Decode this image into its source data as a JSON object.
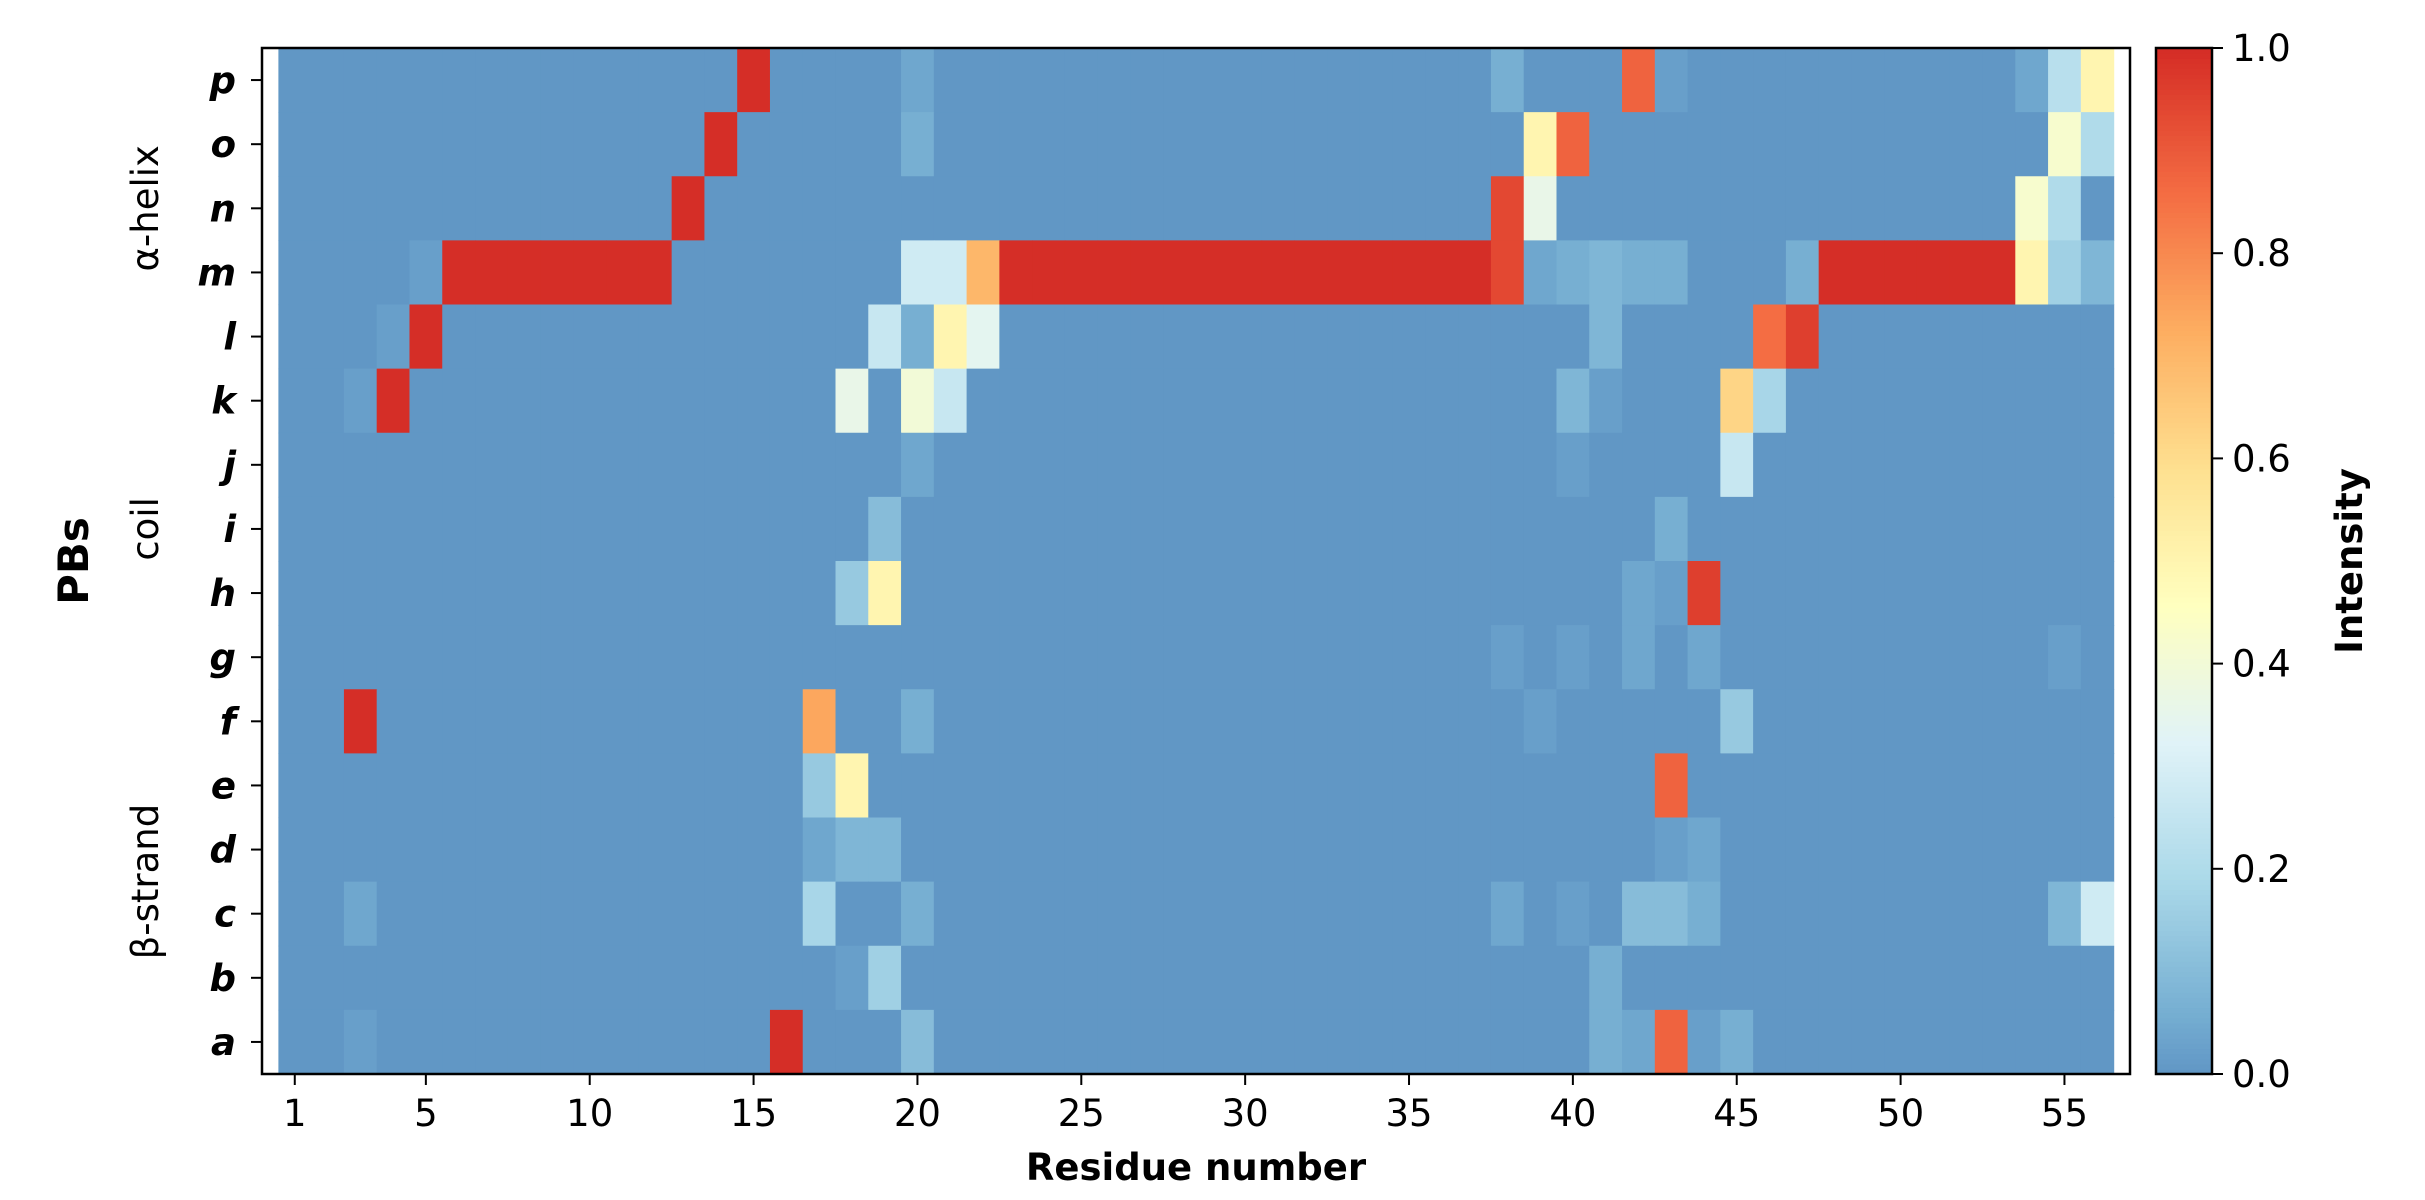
{
  "chart_data": {
    "type": "heatmap",
    "xlabel": "Residue number",
    "ylabel": "PBs",
    "colorbar_label": "Intensity",
    "colormap": "RdYlBu_r",
    "vmin": 0.0,
    "vmax": 1.0,
    "colorbar_ticks": [
      "0.0",
      "0.2",
      "0.4",
      "0.6",
      "0.8",
      "1.0"
    ],
    "x_first_residue": 1,
    "x_last_residue": 56,
    "x_ticks": [
      1,
      5,
      10,
      15,
      20,
      25,
      30,
      35,
      40,
      45,
      50,
      55
    ],
    "rows": [
      "p",
      "o",
      "n",
      "m",
      "l",
      "k",
      "j",
      "i",
      "h",
      "g",
      "f",
      "e",
      "d",
      "c",
      "b",
      "a"
    ],
    "row_groups": [
      {
        "label": "α-helix",
        "from_row": "p",
        "to_row": "l"
      },
      {
        "label": "coil",
        "from_row": "k",
        "to_row": "g"
      },
      {
        "label": "β-strand",
        "from_row": "f",
        "to_row": "a"
      }
    ],
    "cells": {
      "p": {
        "15": 1.0,
        "20": 0.04,
        "38": 0.06,
        "42": 0.88,
        "43": 0.02,
        "54": 0.04,
        "55": 0.22,
        "56": 0.5
      },
      "o": {
        "14": 1.0,
        "20": 0.06,
        "39": 0.5,
        "40": 0.88,
        "55": 0.42,
        "56": 0.2
      },
      "n": {
        "13": 1.0,
        "38": 0.94,
        "39": 0.36,
        "54": 0.42,
        "55": 0.2
      },
      "m": {
        "5": 0.02,
        "6": 1.0,
        "7": 1.0,
        "8": 1.0,
        "9": 1.0,
        "10": 1.0,
        "11": 1.0,
        "12": 1.0,
        "20": 0.28,
        "21": 0.28,
        "22": 0.7,
        "23": 1.0,
        "24": 1.0,
        "25": 1.0,
        "26": 1.0,
        "27": 1.0,
        "28": 1.0,
        "29": 1.0,
        "30": 1.0,
        "31": 1.0,
        "32": 1.0,
        "33": 1.0,
        "34": 1.0,
        "35": 1.0,
        "36": 1.0,
        "37": 1.0,
        "38": 0.94,
        "39": 0.04,
        "40": 0.06,
        "41": 0.08,
        "42": 0.06,
        "43": 0.06,
        "47": 0.06,
        "48": 1.0,
        "49": 1.0,
        "50": 1.0,
        "51": 1.0,
        "52": 1.0,
        "53": 1.0,
        "54": 0.5,
        "55": 0.16,
        "56": 0.08
      },
      "l": {
        "4": 0.02,
        "5": 1.0,
        "19": 0.26,
        "20": 0.06,
        "21": 0.5,
        "22": 0.34,
        "41": 0.08,
        "46": 0.86,
        "47": 0.96
      },
      "k": {
        "3": 0.02,
        "4": 1.0,
        "18": 0.36,
        "20": 0.4,
        "21": 0.26,
        "40": 0.08,
        "41": 0.02,
        "45": 0.62,
        "46": 0.18
      },
      "j": {
        "20": 0.04,
        "40": 0.02,
        "45": 0.26
      },
      "i": {
        "19": 0.1,
        "43": 0.06
      },
      "h": {
        "18": 0.14,
        "19": 0.5,
        "42": 0.04,
        "43": 0.02,
        "44": 0.96
      },
      "g": {
        "38": 0.02,
        "40": 0.02,
        "42": 0.04,
        "44": 0.04,
        "55": 0.02
      },
      "f": {
        "3": 1.0,
        "17": 0.74,
        "20": 0.06,
        "39": 0.02,
        "45": 0.14
      },
      "e": {
        "17": 0.14,
        "18": 0.5,
        "43": 0.88
      },
      "d": {
        "17": 0.04,
        "18": 0.08,
        "19": 0.08,
        "43": 0.02,
        "44": 0.04
      },
      "c": {
        "3": 0.04,
        "17": 0.18,
        "20": 0.06,
        "38": 0.04,
        "40": 0.02,
        "42": 0.1,
        "43": 0.1,
        "44": 0.06,
        "55": 0.08,
        "56": 0.28
      },
      "b": {
        "18": 0.02,
        "19": 0.16,
        "41": 0.06
      },
      "a": {
        "3": 0.02,
        "16": 1.0,
        "20": 0.1,
        "41": 0.06,
        "42": 0.04,
        "43": 0.88,
        "44": 0.02,
        "45": 0.06
      }
    }
  }
}
